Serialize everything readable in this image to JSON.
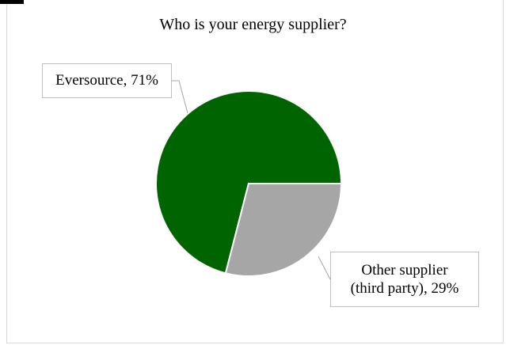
{
  "chart_data": {
    "type": "pie",
    "title": "Who is your energy supplier?",
    "slices": [
      {
        "label": "Eversource",
        "value": 71,
        "display": "Eversource, 71%",
        "color": "#006400"
      },
      {
        "label": "Other supplier (third party)",
        "value": 29,
        "display_line1": "Other supplier",
        "display_line2": "(third party), 29%",
        "color": "#a6a6a6"
      }
    ]
  }
}
